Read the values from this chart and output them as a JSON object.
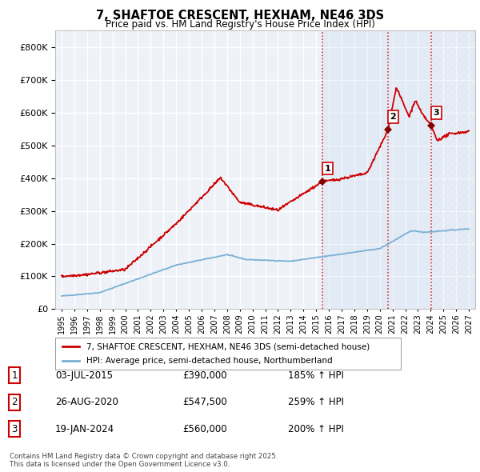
{
  "title": "7, SHAFTOE CRESCENT, HEXHAM, NE46 3DS",
  "subtitle": "Price paid vs. HM Land Registry's House Price Index (HPI)",
  "annotations": [
    {
      "num": 1,
      "date": "03-JUL-2015",
      "price": "£390,000",
      "hpi": "185% ↑ HPI",
      "x_year": 2015.5
    },
    {
      "num": 2,
      "date": "26-AUG-2020",
      "price": "£547,500",
      "hpi": "259% ↑ HPI",
      "x_year": 2020.65
    },
    {
      "num": 3,
      "date": "19-JAN-2024",
      "price": "£560,000",
      "hpi": "200% ↑ HPI",
      "x_year": 2024.05
    }
  ],
  "sale_points": [
    [
      2015.5,
      390000,
      "1"
    ],
    [
      2020.65,
      547500,
      "2"
    ],
    [
      2024.05,
      560000,
      "3"
    ]
  ],
  "vline_years": [
    2015.5,
    2020.65,
    2024.05
  ],
  "blue_shade_start": 2015.5,
  "blue_shade_end": 2024.05,
  "hatch_start": 2024.05,
  "house_line_color": "#cc0000",
  "hpi_line_color": "#7ab0d4",
  "background_color": "#ffffff",
  "plot_bg_color": "#eef2f8",
  "grid_color": "#ffffff",
  "ylim": [
    0,
    850000
  ],
  "xlim_start": 1994.5,
  "xlim_end": 2027.5,
  "legend_house": "7, SHAFTOE CRESCENT, HEXHAM, NE46 3DS (semi-detached house)",
  "legend_hpi": "HPI: Average price, semi-detached house, Northumberland",
  "footer": "Contains HM Land Registry data © Crown copyright and database right 2025.\nThis data is licensed under the Open Government Licence v3.0."
}
